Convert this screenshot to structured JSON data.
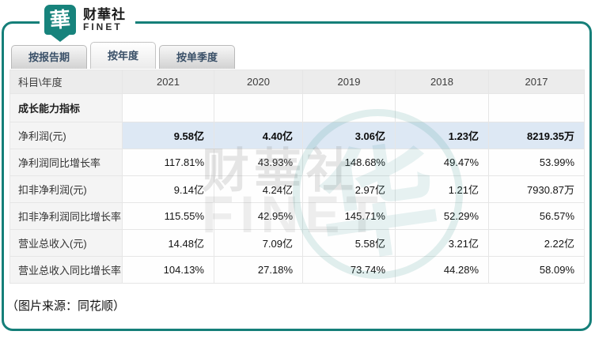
{
  "logo": {
    "badge_char": "華",
    "name": "财華社",
    "subname": "FINET"
  },
  "tabs": [
    {
      "label": "按报告期",
      "active": false
    },
    {
      "label": "按年度",
      "active": true
    },
    {
      "label": "按单季度",
      "active": false
    }
  ],
  "table": {
    "corner_header": "科目\\年度",
    "year_headers": [
      "2021",
      "2020",
      "2019",
      "2018",
      "2017"
    ],
    "rows": [
      {
        "label": "成长能力指标",
        "type": "section",
        "values": [
          "",
          "",
          "",
          "",
          ""
        ]
      },
      {
        "label": "净利润(元)",
        "type": "highlight",
        "values": [
          "9.58亿",
          "4.40亿",
          "3.06亿",
          "1.23亿",
          "8219.35万"
        ]
      },
      {
        "label": "净利润同比增长率",
        "type": "data",
        "values": [
          "117.81%",
          "43.93%",
          "148.68%",
          "49.47%",
          "53.99%"
        ]
      },
      {
        "label": "扣非净利润(元)",
        "type": "data",
        "values": [
          "9.14亿",
          "4.24亿",
          "2.97亿",
          "1.21亿",
          "7930.87万"
        ]
      },
      {
        "label": "扣非净利润同比增长率",
        "type": "data",
        "values": [
          "115.55%",
          "42.95%",
          "145.71%",
          "52.29%",
          "56.57%"
        ]
      },
      {
        "label": "营业总收入(元)",
        "type": "data",
        "values": [
          "14.48亿",
          "7.09亿",
          "5.58亿",
          "3.21亿",
          "2.22亿"
        ]
      },
      {
        "label": "营业总收入同比增长率",
        "type": "data",
        "values": [
          "104.13%",
          "27.18%",
          "73.74%",
          "44.28%",
          "58.09%"
        ]
      }
    ]
  },
  "watermark": {
    "text": "财華社",
    "subtext": "FINET",
    "glyph": "华"
  },
  "caption": "（图片来源：同花顺）",
  "colors": {
    "brand_teal": "#157F79",
    "highlight_blue": "#DDE8F4"
  }
}
